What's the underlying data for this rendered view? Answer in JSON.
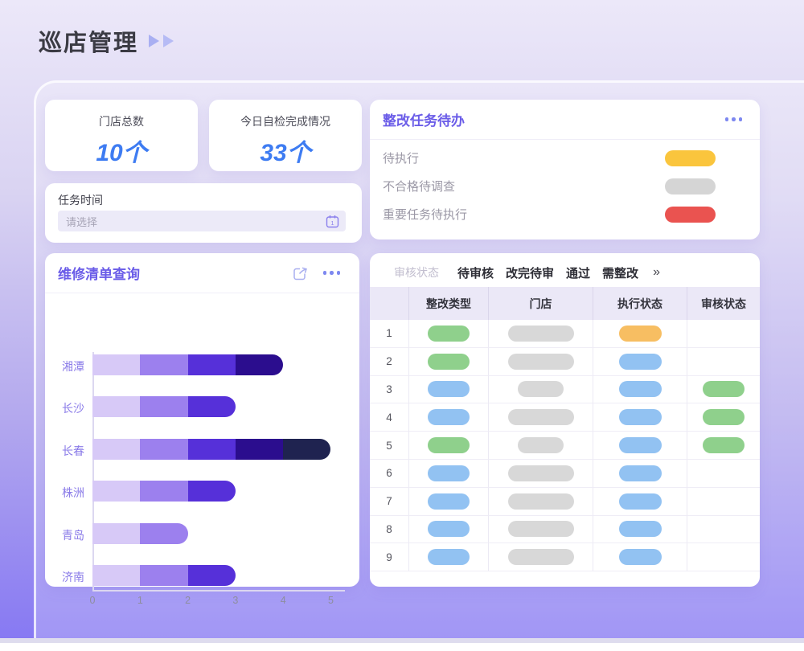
{
  "page": {
    "title": "巡店管理"
  },
  "stats": [
    {
      "label": "门店总数",
      "value": "10个"
    },
    {
      "label": "今日自检完成情况",
      "value": "33个"
    }
  ],
  "task_time": {
    "label": "任务时间",
    "placeholder": "请选择"
  },
  "todo": {
    "title": "整改任务待办",
    "items": [
      {
        "label": "待执行",
        "color": "yellow"
      },
      {
        "label": "不合格待调查",
        "color": "gray"
      },
      {
        "label": "重要任务待执行",
        "color": "red"
      }
    ]
  },
  "repair": {
    "title": "维修清单查询"
  },
  "chart_data": {
    "type": "bar",
    "orientation": "horizontal",
    "stacked": true,
    "title": "维修清单查询",
    "categories": [
      "湘潭",
      "长沙",
      "长春",
      "株洲",
      "青岛",
      "济南"
    ],
    "series": [
      {
        "name": "segment-1",
        "color": "#D7C9F7",
        "values": [
          1,
          1,
          1,
          1,
          1,
          1
        ]
      },
      {
        "name": "segment-2",
        "color": "#9C80EE",
        "values": [
          1,
          1,
          1,
          1,
          1,
          1
        ]
      },
      {
        "name": "segment-3",
        "color": "#5630D9",
        "values": [
          1,
          1,
          1,
          1,
          0,
          1
        ]
      },
      {
        "name": "segment-4",
        "color": "#2B0D8E",
        "values": [
          1,
          0,
          1,
          0,
          0,
          0
        ]
      },
      {
        "name": "segment-5",
        "color": "#1F2350",
        "values": [
          0,
          0,
          1,
          0,
          0,
          0
        ]
      }
    ],
    "totals": [
      4,
      3,
      5,
      3,
      2,
      3
    ],
    "xlim": [
      0,
      5
    ],
    "x_ticks": [
      "0",
      "1",
      "2",
      "3",
      "4",
      "5"
    ],
    "grid": false,
    "legend": "none"
  },
  "review_table": {
    "filter_label": "审核状态",
    "filters": [
      "待审核",
      "改完待审",
      "通过",
      "需整改"
    ],
    "more_label": "»",
    "columns": [
      "",
      "整改类型",
      "门店",
      "执行状态",
      "审核状态"
    ],
    "rows": [
      {
        "num": "1",
        "type": "green",
        "store": "wide",
        "exec": "orange",
        "review": ""
      },
      {
        "num": "2",
        "type": "green",
        "store": "wide",
        "exec": "blue",
        "review": ""
      },
      {
        "num": "3",
        "type": "blue",
        "store": "short",
        "exec": "blue",
        "review": "green"
      },
      {
        "num": "4",
        "type": "blue",
        "store": "wide",
        "exec": "blue",
        "review": "green"
      },
      {
        "num": "5",
        "type": "green",
        "store": "short",
        "exec": "blue",
        "review": "green"
      },
      {
        "num": "6",
        "type": "blue",
        "store": "wide",
        "exec": "blue",
        "review": ""
      },
      {
        "num": "7",
        "type": "blue",
        "store": "wide",
        "exec": "blue",
        "review": ""
      },
      {
        "num": "8",
        "type": "blue",
        "store": "wide",
        "exec": "blue",
        "review": ""
      },
      {
        "num": "9",
        "type": "blue",
        "store": "wide",
        "exec": "blue",
        "review": ""
      }
    ]
  },
  "colors": {
    "yellow": "#FAC53D",
    "gray": "#D5D5D5",
    "red": "#EA5350",
    "green": "#8FD08C",
    "blue": "#92C2F2",
    "orange": "#F7BE62",
    "store_gray": "#D8D8D8",
    "accent_purple": "#6A5CE8",
    "value_blue": "#3E7CF2",
    "icon_periwinkle": "#A9AFF0"
  },
  "icons": {
    "header_arrows": "double-play-icon",
    "todo_menu": "ellipsis-icon",
    "repair_share": "share-icon",
    "repair_menu": "ellipsis-icon",
    "date_picker": "calendar-icon",
    "filter_more": "double-chevron-right-icon"
  }
}
